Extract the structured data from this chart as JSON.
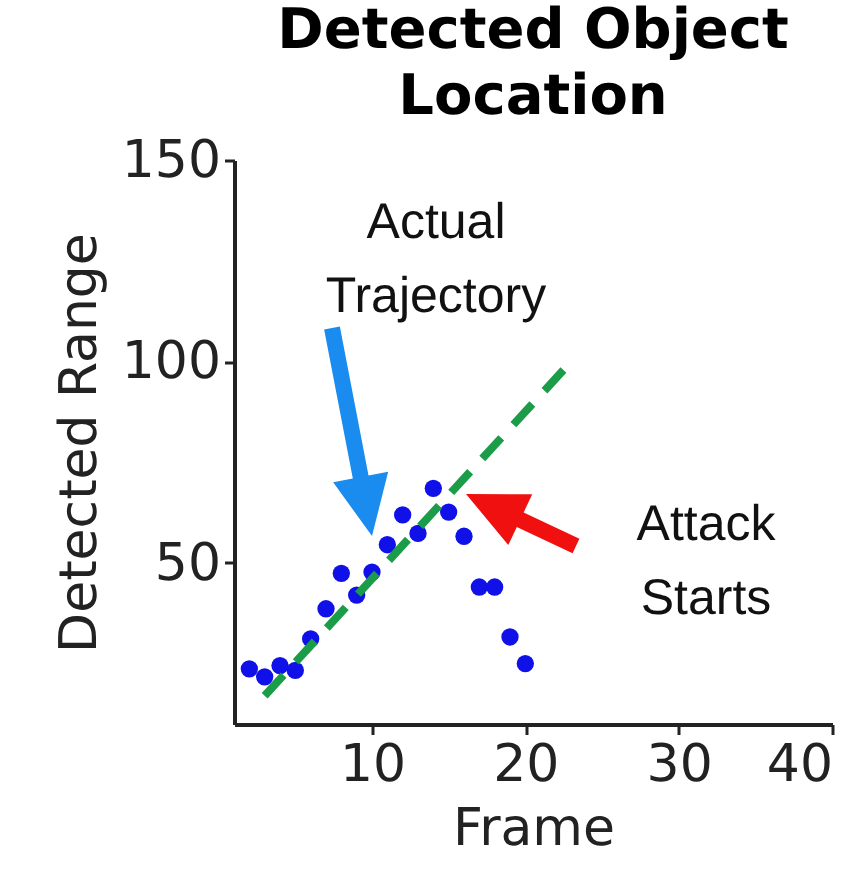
{
  "chart_data": {
    "type": "scatter",
    "title": "Detected Object Location",
    "xlabel": "Frame",
    "ylabel": "Detected Range",
    "xlim": [
      1,
      40
    ],
    "xticks": [
      10,
      20,
      30,
      40
    ],
    "ylim": [
      10,
      150
    ],
    "yticks": [
      50,
      100,
      150
    ],
    "grid": false,
    "series": [
      {
        "marker": "circle",
        "color": "#1010e8",
        "x": [
          2,
          3,
          4,
          5,
          6,
          7,
          8,
          9,
          10,
          11,
          12,
          13,
          14,
          15,
          16,
          17,
          18,
          19,
          20
        ],
        "values": [
          23.7,
          21.7,
          24.5,
          23.3,
          31.1,
          38.6,
          47.4,
          42,
          47.7,
          54.5,
          61.9,
          57.3,
          68.5,
          62.6,
          56.6,
          44,
          44,
          31.6,
          25
        ]
      },
      {
        "type": "line",
        "color": "#1a9c48",
        "line_style": "dashed",
        "x": [
          3,
          23
        ],
        "values": [
          17,
          100
        ]
      }
    ],
    "annotations": [
      "Actual Trajectory",
      "Attack Starts"
    ]
  }
}
